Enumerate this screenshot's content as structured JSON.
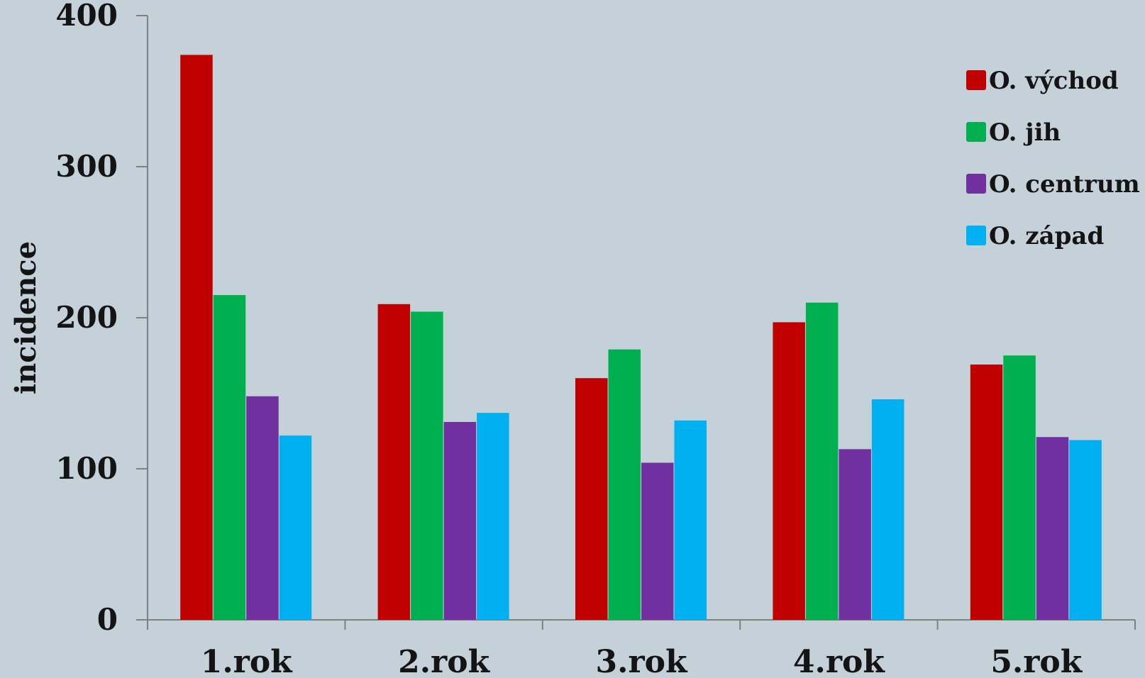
{
  "chart_data": {
    "type": "bar",
    "title": "",
    "xlabel": "",
    "ylabel": "incidence",
    "ylim": [
      0,
      400
    ],
    "yticks": [
      0,
      100,
      200,
      300,
      400
    ],
    "grid": false,
    "legend_position": "top-right",
    "categories": [
      "1.rok",
      "2.rok",
      "3.rok",
      "4.rok",
      "5.rok"
    ],
    "series": [
      {
        "name": "O. východ",
        "color": "#c00000",
        "values": [
          374,
          209,
          160,
          197,
          169
        ]
      },
      {
        "name": "O. jih",
        "color": "#00b050",
        "values": [
          215,
          204,
          179,
          210,
          175
        ]
      },
      {
        "name": "O. centrum",
        "color": "#7030a0",
        "values": [
          148,
          131,
          104,
          113,
          121
        ]
      },
      {
        "name": "O. západ",
        "color": "#00b0f0",
        "values": [
          122,
          137,
          132,
          146,
          119
        ]
      }
    ]
  }
}
